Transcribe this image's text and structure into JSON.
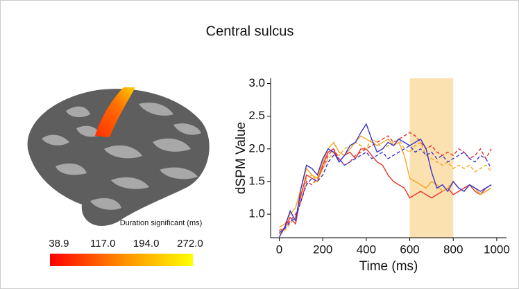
{
  "title": "Central sulcus",
  "chart_data": [
    {
      "type": "colorbar",
      "label": "Duration significant (ms)",
      "clim": [
        23,
        277
      ],
      "colors": [
        "#ff0000",
        "#ff8c00",
        "#ffff00"
      ],
      "ticks": [
        38.9,
        {
          "value": 117,
          "label": "117.0"
        },
        {
          "value": 194,
          "label": "194.0"
        },
        {
          "value": 272,
          "label": "272.0"
        }
      ]
    },
    {
      "type": "line",
      "xlabel": "Time (ms)",
      "ylabel": "dSPM Value",
      "xlim": [
        -40,
        1045
      ],
      "ylim": [
        0.64,
        3.08
      ],
      "xticks": [
        0,
        200,
        400,
        600,
        800,
        1000
      ],
      "yticks": [
        {
          "value": 1,
          "label": "1.0"
        },
        1.5,
        {
          "value": 2,
          "label": "2.0"
        },
        2.5,
        {
          "value": 3,
          "label": "3.0"
        }
      ],
      "highlight": [
        600,
        800
      ],
      "highlight_color": "#fbe0b0",
      "x": [
        0,
        25,
        50,
        75,
        100,
        125,
        150,
        175,
        200,
        225,
        250,
        275,
        300,
        325,
        350,
        375,
        400,
        425,
        450,
        475,
        500,
        525,
        550,
        575,
        600,
        625,
        650,
        675,
        700,
        725,
        750,
        775,
        800,
        825,
        850,
        875,
        900,
        925,
        950,
        975
      ],
      "series": [
        {
          "color": "#e8322b",
          "dash": false,
          "values": [
            0.7,
            0.8,
            0.95,
            0.85,
            1.3,
            1.6,
            1.55,
            1.5,
            1.75,
            1.95,
            2.0,
            1.8,
            1.9,
            1.95,
            1.85,
            2.0,
            2.0,
            1.9,
            1.8,
            1.75,
            1.6,
            1.5,
            1.45,
            1.4,
            1.25,
            1.3,
            1.35,
            1.3,
            1.25,
            1.3,
            1.35,
            1.4,
            1.3,
            1.35,
            1.4,
            1.45,
            1.35,
            1.3,
            1.4,
            1.45
          ]
        },
        {
          "color": "#e8322b",
          "dash": true,
          "values": [
            0.75,
            0.8,
            0.9,
            1.0,
            1.2,
            1.5,
            1.45,
            1.55,
            1.7,
            1.9,
            2.0,
            1.85,
            1.75,
            1.8,
            1.9,
            1.95,
            2.0,
            2.05,
            2.1,
            2.15,
            2.2,
            2.1,
            2.15,
            2.2,
            2.25,
            2.2,
            2.1,
            2.0,
            2.05,
            1.95,
            1.9,
            1.95,
            1.9,
            2.0,
            1.95,
            1.85,
            1.9,
            2.0,
            1.85,
            2.0
          ]
        },
        {
          "color": "#f5a623",
          "dash": false,
          "values": [
            0.8,
            0.85,
            1.0,
            1.1,
            1.4,
            1.7,
            1.6,
            1.55,
            1.8,
            2.0,
            2.1,
            1.95,
            1.9,
            2.0,
            2.1,
            2.2,
            2.15,
            2.1,
            2.05,
            2.1,
            2.15,
            2.05,
            2.1,
            1.9,
            1.55,
            1.5,
            1.45,
            1.4,
            1.5,
            1.45,
            1.35,
            1.4,
            1.5,
            1.4,
            1.35,
            1.45,
            1.4,
            1.3,
            1.35,
            1.4
          ]
        },
        {
          "color": "#f5a623",
          "dash": true,
          "values": [
            0.7,
            0.75,
            0.85,
            0.95,
            1.25,
            1.55,
            1.6,
            1.5,
            1.7,
            1.85,
            1.95,
            1.9,
            2.0,
            2.05,
            2.1,
            2.05,
            2.0,
            2.15,
            2.1,
            2.0,
            2.05,
            2.1,
            2.15,
            2.0,
            1.95,
            2.05,
            2.1,
            1.9,
            1.85,
            1.8,
            1.75,
            1.8,
            1.7,
            1.75,
            1.7,
            1.75,
            1.65,
            1.7,
            1.75,
            1.65
          ]
        },
        {
          "color": "#3a35d0",
          "dash": false,
          "values": [
            0.65,
            0.8,
            1.05,
            0.9,
            1.4,
            1.75,
            1.7,
            1.6,
            1.85,
            2.0,
            1.95,
            1.8,
            1.9,
            2.05,
            2.1,
            2.25,
            2.38,
            2.15,
            1.95,
            2.0,
            2.1,
            2.05,
            2.15,
            2.1,
            2.05,
            2.1,
            2.15,
            2.0,
            1.65,
            1.4,
            1.45,
            1.35,
            1.5,
            1.4,
            1.35,
            1.45,
            1.4,
            1.35,
            1.4,
            1.45
          ]
        },
        {
          "color": "#3a35d0",
          "dash": true,
          "values": [
            0.72,
            0.78,
            0.88,
            0.95,
            1.2,
            1.45,
            1.55,
            1.5,
            1.6,
            1.8,
            1.9,
            1.85,
            1.75,
            1.8,
            1.85,
            1.9,
            1.95,
            1.85,
            1.9,
            1.95,
            1.85,
            1.9,
            1.95,
            2.0,
            2.05,
            1.95,
            2.0,
            1.9,
            1.95,
            1.85,
            1.9,
            1.8,
            1.85,
            1.9,
            1.95,
            1.85,
            1.8,
            1.9,
            1.85,
            1.7
          ]
        }
      ]
    }
  ]
}
